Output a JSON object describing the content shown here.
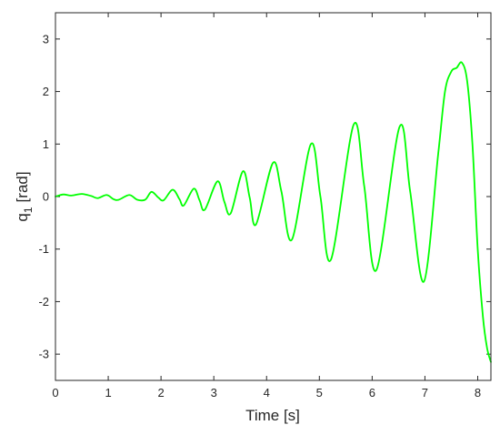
{
  "chart_data": {
    "type": "line",
    "title": "",
    "xlabel": "Time [s]",
    "ylabel_main": "q",
    "ylabel_sub": "1",
    "ylabel_unit": "[rad]",
    "xlim": [
      0,
      8.25
    ],
    "ylim": [
      -3.5,
      3.5
    ],
    "grid": false,
    "box": true,
    "x_ticks": [
      0,
      1,
      2,
      3,
      4,
      5,
      6,
      7,
      8
    ],
    "y_ticks": [
      -3,
      -2,
      -1,
      0,
      1,
      2,
      3
    ],
    "series": [
      {
        "color": "#00ff00",
        "points": [
          [
            0.0,
            0.0
          ],
          [
            0.15,
            0.04
          ],
          [
            0.3,
            0.02
          ],
          [
            0.5,
            0.05
          ],
          [
            0.68,
            0.01
          ],
          [
            0.8,
            -0.03
          ],
          [
            0.97,
            0.03
          ],
          [
            1.1,
            -0.05
          ],
          [
            1.2,
            -0.06
          ],
          [
            1.4,
            0.03
          ],
          [
            1.55,
            -0.06
          ],
          [
            1.7,
            -0.06
          ],
          [
            1.82,
            0.09
          ],
          [
            1.95,
            -0.02
          ],
          [
            2.05,
            -0.07
          ],
          [
            2.22,
            0.13
          ],
          [
            2.35,
            -0.05
          ],
          [
            2.43,
            -0.17
          ],
          [
            2.62,
            0.15
          ],
          [
            2.73,
            -0.07
          ],
          [
            2.83,
            -0.25
          ],
          [
            3.07,
            0.29
          ],
          [
            3.2,
            -0.1
          ],
          [
            3.32,
            -0.32
          ],
          [
            3.55,
            0.48
          ],
          [
            3.68,
            -0.02
          ],
          [
            3.8,
            -0.53
          ],
          [
            4.12,
            0.64
          ],
          [
            4.28,
            0.1
          ],
          [
            4.48,
            -0.82
          ],
          [
            4.84,
            1.0
          ],
          [
            5.02,
            0.0
          ],
          [
            5.22,
            -1.2
          ],
          [
            5.65,
            1.37
          ],
          [
            5.85,
            0.2
          ],
          [
            6.08,
            -1.4
          ],
          [
            6.52,
            1.33
          ],
          [
            6.72,
            0.1
          ],
          [
            6.98,
            -1.62
          ],
          [
            7.25,
            0.8
          ],
          [
            7.38,
            2.0
          ],
          [
            7.5,
            2.38
          ],
          [
            7.6,
            2.45
          ],
          [
            7.7,
            2.55
          ],
          [
            7.8,
            2.2
          ],
          [
            7.9,
            1.0
          ],
          [
            8.0,
            -1.0
          ],
          [
            8.1,
            -2.3
          ],
          [
            8.18,
            -2.9
          ],
          [
            8.25,
            -3.15
          ]
        ]
      }
    ]
  }
}
